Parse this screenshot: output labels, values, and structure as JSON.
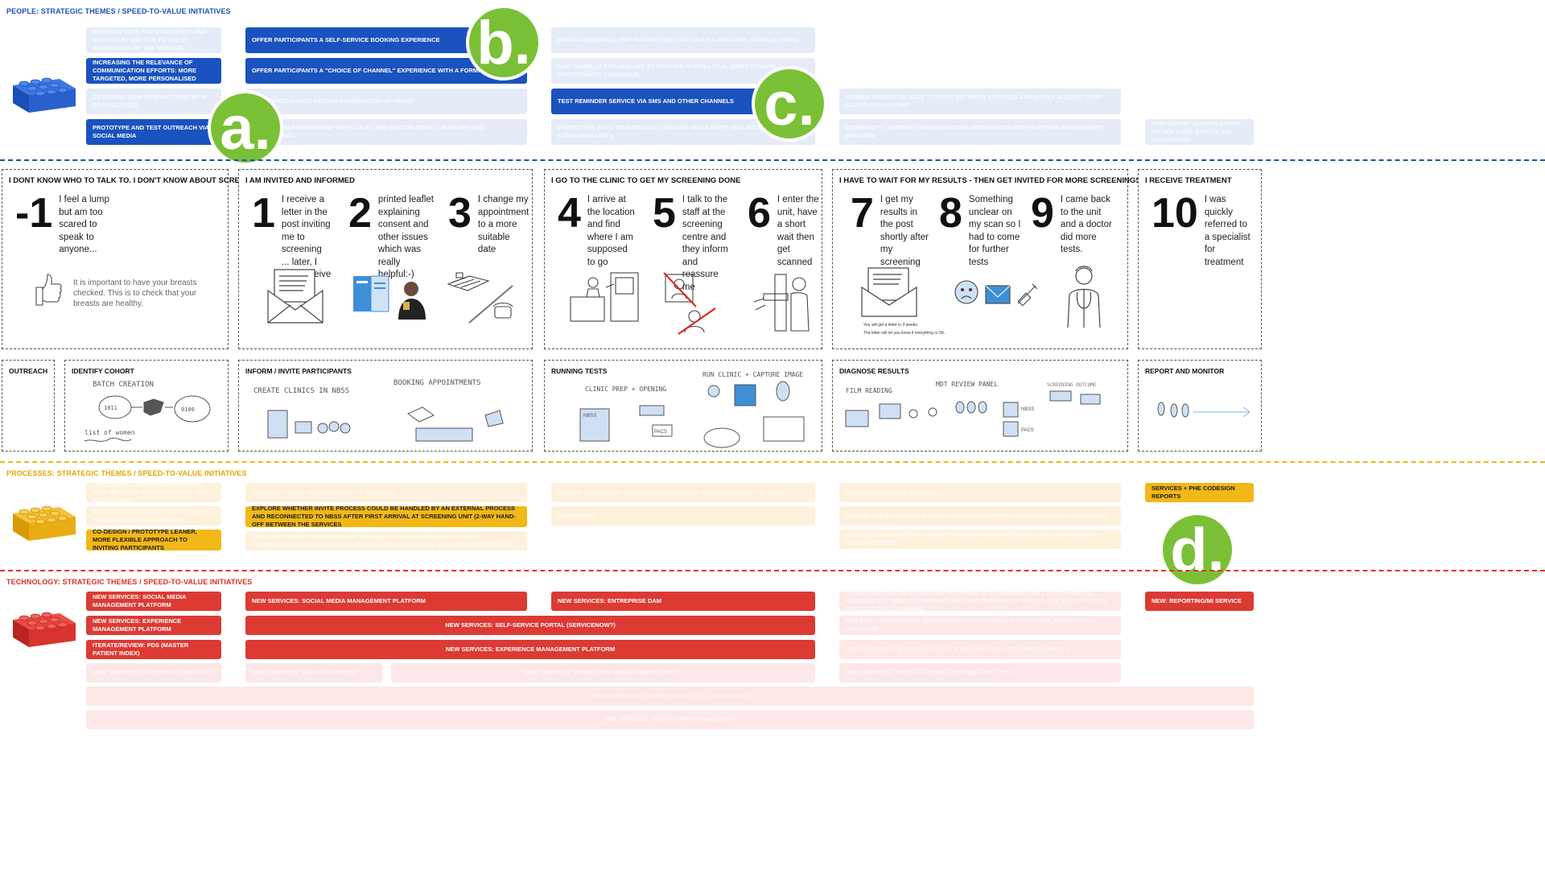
{
  "people": {
    "title": "PEOPLE: STRATEGIC THEMES / SPEED-TO-VALUE INITIATIVES",
    "cards": [
      {
        "text": "WORKING WITH THE COMMUNITY AND VOLUNTARY SECTOR TO BUILD AWARENESS OF THE SERVICE",
        "active": false
      },
      {
        "text": "INCREASING THE RELEVANCE OF COMMUNICATION EFFORTS: MORE TARGETED, MORE PERSONALISED",
        "active": true
      },
      {
        "text": "DESIGNING NEW INTERACTIONS WITH GP PRACTICES",
        "active": false
      },
      {
        "text": "PROTOTYPE AND TEST OUTREACH VIA SOCIAL MEDIA",
        "active": true
      },
      {
        "text": "OFFER PARTICIPANTS A SELF-SERVICE BOOKING EXPERIENCE",
        "active": true
      },
      {
        "text": "OFFER PARTICIPANTS A \"CHOICE OF CHANNEL\" EXPERIENCE WITH A FORMAL OPT-IN",
        "active": true
      },
      {
        "text": "GIVE PARTICIPANTS BETTER INFORMATION UP FRONT",
        "active": false
      },
      {
        "text": "WORKING IN PARTNERSHIP WITH LOCAL 3RD SECTOR ORGS, CHURCHES AND COMMUNITIES",
        "active": false
      },
      {
        "text": "MORE ACCESSIBLE UNIT INFRASTRUCTURE (MULTI-LANGUAGE, BRAILLE MAPS)",
        "active": false
      },
      {
        "text": "\"AR\" OVERLAY FOR NHS APP TO PROVIDE HYPER-LOCAL DIRECTIONS IN PARTICIPANTS' LANGUAGE",
        "active": false
      },
      {
        "text": "TEST REMINDER SERVICE VIA SMS AND OTHER CHANNELS",
        "active": true
      },
      {
        "text": "PROTOTYPE WAYS TO INCREASE COMFORT AND SAFETY FEELING ON LEARNING SCREENING UNITS",
        "active": false
      },
      {
        "text": "WOMEN SHOULD BE ABLE TO MOVE BETWEEN SERVICES AND EASILY ACCESS THEIR SCREENING HISTORY",
        "active": false
      },
      {
        "text": "COMMUNITY / SUPPORT ORGANISATIONS INTEGRATION WITH FURTHER ASSESSMENT PROCESS",
        "active": false
      },
      {
        "text": "PARTICIPANT ALWAYS AWARE OF HER CARE STATUS, VIA DASHBOARD",
        "active": false
      }
    ]
  },
  "badges": {
    "a": "a.",
    "b": "b.",
    "c": "c.",
    "d": "d."
  },
  "journey": [
    {
      "title": "I DONT KNOW WHO TO TALK TO. I DON'T KNOW ABOUT SCREENING",
      "steps": [
        {
          "num": "-1",
          "text": "I feel a lump but am too scared to speak to anyone..."
        }
      ],
      "note": "It is important to have your breasts checked. This is to check that your breasts are healthy."
    },
    {
      "title": "I AM INVITED AND INFORMED",
      "steps": [
        {
          "num": "1",
          "text": "I receive a letter in the post inviting me to screening ... later, I also receive a..."
        },
        {
          "num": "2",
          "text": "printed leaflet explaining consent and other issues which was really helpful:-)"
        },
        {
          "num": "3",
          "text": "I change my appointment to a more suitable date"
        }
      ]
    },
    {
      "title": "I GO TO THE CLINIC TO GET MY SCREENING DONE",
      "steps": [
        {
          "num": "4",
          "text": "I arrive at the location and find where I am supposed to go"
        },
        {
          "num": "5",
          "text": "I talk to the staff at the screening centre and they inform and reassure me"
        },
        {
          "num": "6",
          "text": "I enter the unit, have a short wait then get scanned"
        }
      ]
    },
    {
      "title": "I HAVE TO WAIT FOR MY RESULTS - THEN GET INVITED FOR MORE SCREENINGS",
      "steps": [
        {
          "num": "7",
          "text": "I get my results in the post shortly after my screening"
        },
        {
          "num": "8",
          "text": "Something unclear on my scan so I had to come for further tests"
        },
        {
          "num": "9",
          "text": "I came back to the unit and a doctor did more tests."
        }
      ],
      "note1": "You will get a letter in 3 weeks.",
      "note2": "The letter will let you know if everything is OK."
    },
    {
      "title": "I RECEIVE TREATMENT",
      "steps": [
        {
          "num": "10",
          "text": "I was quickly referred to a specialist for treatment"
        }
      ]
    }
  ],
  "ops": {
    "titles": [
      "OUTREACH",
      "IDENTIFY COHORT",
      "INFORM / INVITE PARTICIPANTS",
      "RUNNING TESTS",
      "DIAGNOSE RESULTS",
      "REPORT AND MONITOR"
    ],
    "sketch_labels": {
      "batch": "BATCH CREATION",
      "list": "list of women",
      "clinics": "CREATE CLINICS IN NBSS",
      "booking": "BOOKING APPOINTMENTS",
      "clinic_prep": "CLINIC PREP + OPENING",
      "run_clinic": "RUN CLINIC + CAPTURE IMAGE",
      "nbss": "NBSS",
      "pacs": "PACS",
      "film": "FILM READING",
      "mdt": "MDT REVIEW PANEL",
      "nbss2": "NBSS",
      "pacs2": "PACS",
      "screening": "SCREENING OUTCOME"
    }
  },
  "process": {
    "title": "PROCESSES: STRATEGIC THEMES / SPEED-TO-VALUE INITIATIVES",
    "cards": [
      {
        "text": "CHALLENGE ASSUMPTIONS AROUND WHY WE INVITE CERTAIN WOMEN AND NOT OTHERS",
        "active": false
      },
      {
        "text": "RUN BUSINESS DESIGN WORKSHOPS TO REDESIGN ROUND PLANNING",
        "active": false
      },
      {
        "text": "CO-DESIGN / PROTOTYPE LEANER, MORE FLEXIBLE APPROACH TO INVITING PARTICIPANTS",
        "active": true
      },
      {
        "text": "EXPLORE VIABLE ALTERNATIVES TO \"BATCHES\"",
        "active": false
      },
      {
        "text": "EXPLORE WHETHER INVITE PROCESS COULD BE HANDLED BY AN EXTERNAL PROCESS AND RECONNECTED TO NBSS AFTER FIRST ARRIVAL AT SCREENING UNIT (2-WAY HAND-OFF BETWEEN THE SERVICES",
        "active": true
      },
      {
        "text": "EXPLORE OPPORTUNITIES FOR BETTER MULTI-LANGUAGE/MULTI-CULTURAL COMMUNICATIONS INC CONTENT ASSETS LIKE LETTER TEXT, MAPS DESCRIPTORS ETC.",
        "active": false
      },
      {
        "text": "CREATE PERMANENT TRAINING MODULES FOR CLINICIANS WHO USE NBSS",
        "active": false
      },
      {
        "text": "OTHERS TBC",
        "active": false
      },
      {
        "text": "FACILITATE REMOTE READING",
        "active": false
      },
      {
        "text": "REVIEW AND CO-DESIGN (POLICY+CLINICIAN+SERVICE DESIGN) READING PROTOCOLS",
        "active": false
      },
      {
        "text": "HOW MIGHT WE BETTER SUPPORT WOMEN MOVING BETWEEN UNITS AND NEEDING THEIR HISTORIES",
        "active": false
      },
      {
        "text": "SERVICES + PHE CODESIGN REPORTS",
        "active": true
      }
    ]
  },
  "tech": {
    "title": "TECHNOLOGY: STRATEGIC THEMES / SPEED-TO-VALUE INITIATIVES",
    "cards": [
      {
        "text": "NEW SERVICES: SOCIAL MEDIA MANAGEMENT PLATFORM",
        "active": true
      },
      {
        "text": "NEW SERVICES: EXPERIENCE MANAGEMENT PLATFORM",
        "active": true
      },
      {
        "text": "ITERATE/REVIEW: PDS (MASTER PATIENT INDEX)",
        "active": true
      },
      {
        "text": "NEW SERVICES: GAZETEER (GEOPLACE)",
        "active": false
      },
      {
        "text": "NEW SERVICES: SOCIAL MEDIA MANAGEMENT PLATFORM",
        "active": true
      },
      {
        "text": "NEW SERVICES: ENTREPRISE DAM",
        "active": true
      },
      {
        "text": "NEW SERVICES: SELF-SERVICE PORTAL (SERVICENOW?)",
        "active": true
      },
      {
        "text": "NEW SERVICES: EXPERIENCE MANAGEMENT PLATFORM",
        "active": true
      },
      {
        "text": "NEW SERVICES: MAILING SERVICE",
        "active": false
      },
      {
        "text": "NEW SERVICES: WORKFLOW MANAGEMENT / RULES",
        "active": false
      },
      {
        "text": "ITERATE/REVIEW: INTEGRATE AS PACKAGES IN SCREENING UNITS (LAN RESULTS) REARCHITECT NBSS FOR WORKFLOWS AND MAPPING OF IMAGES, SEE ALSO PPS FOR PRODUCT PROGRAMMING",
        "active": false
      },
      {
        "text": "PRE-EXIST INTEGRATION (HEALTHFLIX PHC) NETWORKS FUNCTIONS AND NATIONAL DATABASE",
        "active": false
      },
      {
        "text": "SEE SYSTEMS FOR DETAILED LIST OF READING RELATED IMPROVEMENTS",
        "active": false
      },
      {
        "text": "NEW SERVICES: PACS PLATFORM (CPS/ONE/UPS - TBC?)",
        "active": false
      },
      {
        "text": "NEW: REPORTING/MI SERVICE",
        "active": true
      },
      {
        "text": "ITERATE/REVIEW: IAM (NHS IDENTITY) - LOGIN PUBLIC",
        "active": false
      },
      {
        "text": "NEW SERVICES: ASSETS (API MANAGEMENT)",
        "active": false
      }
    ]
  }
}
